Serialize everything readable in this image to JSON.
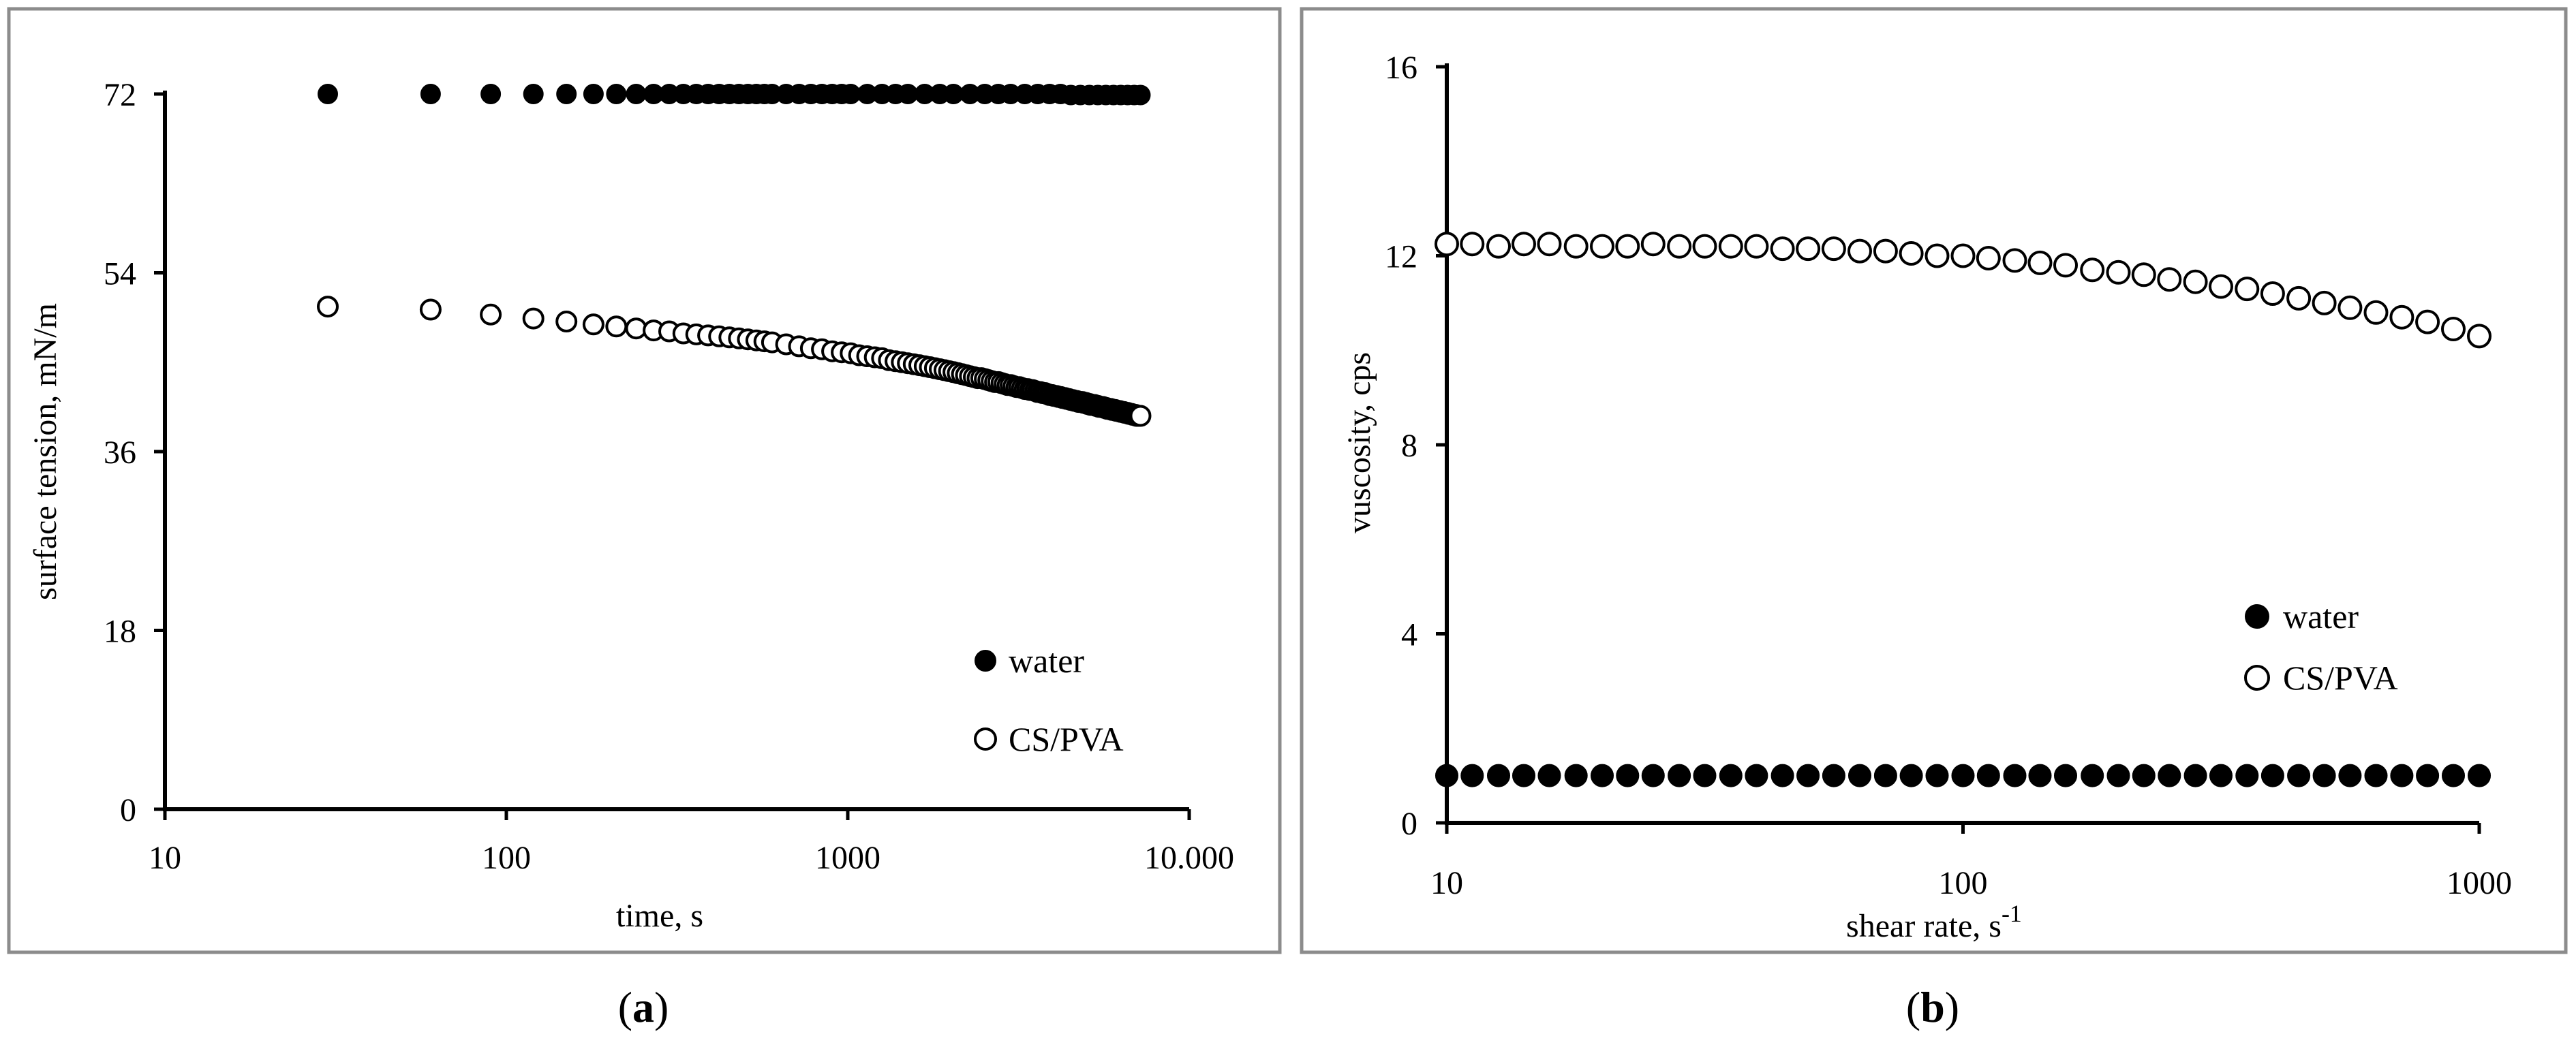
{
  "chart_data": [
    {
      "id": "a",
      "type": "scatter",
      "panel_label": "a",
      "xlabel": "time, s",
      "ylabel": "surface tension, mN/m",
      "xscale": "log",
      "xlim": [
        10,
        10000
      ],
      "ylim": [
        0,
        72
      ],
      "xticks": [
        10,
        100,
        1000,
        10000
      ],
      "xtick_labels": [
        "10",
        "100",
        "1000",
        "10.000"
      ],
      "yticks": [
        0,
        18,
        36,
        54,
        72
      ],
      "ytick_labels": [
        "0",
        "18",
        "36",
        "54",
        "72"
      ],
      "legend_position": "bottom-right",
      "series": [
        {
          "name": "water",
          "marker": "filled-circle",
          "x": [
            30,
            60,
            90,
            120,
            150,
            180,
            210,
            240,
            270,
            300,
            330,
            360,
            390,
            420,
            450,
            480,
            510,
            540,
            570,
            600,
            660,
            720,
            780,
            840,
            900,
            960,
            1020,
            1140,
            1260,
            1380,
            1500,
            1680,
            1860,
            2040,
            2280,
            2520,
            2760,
            3000,
            3300,
            3600,
            3900,
            4200,
            4500,
            4800,
            5100,
            5400,
            5700,
            6000,
            6300,
            6600,
            6900,
            7200
          ],
          "y": [
            72,
            72,
            72,
            72,
            72,
            72,
            72,
            72,
            72,
            72,
            72,
            72,
            72,
            72,
            72,
            72,
            72,
            72,
            72,
            72,
            72,
            72,
            72,
            72,
            72,
            72,
            72,
            72,
            72,
            72,
            72,
            72,
            72,
            72,
            72,
            72,
            72,
            72,
            72,
            72,
            72,
            72,
            71.9,
            71.9,
            71.9,
            71.9,
            71.9,
            71.9,
            71.9,
            71.9,
            71.9,
            71.9
          ]
        },
        {
          "name": "CS/PVA",
          "marker": "hollow-circle",
          "x": [
            30,
            60,
            90,
            120,
            150,
            180,
            210,
            240,
            270,
            300,
            330,
            360,
            390,
            420,
            450,
            480,
            510,
            540,
            570,
            600,
            660,
            720,
            780,
            840,
            900,
            960,
            1020,
            1080,
            1140,
            1200,
            1260,
            1320,
            1380,
            1440,
            1500,
            1560,
            1620,
            1680,
            1740,
            1800,
            1860,
            1920,
            1980,
            2040,
            2100,
            2160,
            2220,
            2280,
            2340,
            2400,
            2460,
            2520,
            2580,
            2640,
            2700,
            2760,
            2820,
            2880,
            2940,
            3000,
            3060,
            3120,
            3180,
            3240,
            3300,
            3360,
            3420,
            3480,
            3540,
            3600,
            3660,
            3720,
            3780,
            3840,
            3900,
            3960,
            4020,
            4080,
            4140,
            4200,
            4260,
            4320,
            4380,
            4440,
            4500,
            4560,
            4620,
            4680,
            4740,
            4800,
            4860,
            4920,
            4980,
            5040,
            5100,
            5160,
            5220,
            5280,
            5340,
            5400,
            5460,
            5520,
            5580,
            5640,
            5700,
            5760,
            5820,
            5880,
            5940,
            6000,
            6060,
            6120,
            6180,
            6240,
            6300,
            6360,
            6420,
            6480,
            6540,
            6600,
            6660,
            6720,
            6780,
            6840,
            6900,
            6960,
            7020,
            7080,
            7140,
            7200
          ],
          "y": [
            50.6,
            50.3,
            49.8,
            49.4,
            49.1,
            48.8,
            48.6,
            48.4,
            48.2,
            48.1,
            47.9,
            47.8,
            47.7,
            47.6,
            47.5,
            47.4,
            47.3,
            47.2,
            47.1,
            47.0,
            46.8,
            46.6,
            46.4,
            46.3,
            46.1,
            46.0,
            45.9,
            45.7,
            45.6,
            45.5,
            45.4,
            45.2,
            45.1,
            45.0,
            44.9,
            44.8,
            44.7,
            44.6,
            44.5,
            44.4,
            44.3,
            44.2,
            44.1,
            44.0,
            43.9,
            43.8,
            43.7,
            43.6,
            43.5,
            43.4,
            43.4,
            43.3,
            43.2,
            43.1,
            43.0,
            43.0,
            42.9,
            42.8,
            42.7,
            42.7,
            42.6,
            42.5,
            42.5,
            42.4,
            42.3,
            42.3,
            42.2,
            42.2,
            42.1,
            42.0,
            42.0,
            41.9,
            41.9,
            41.8,
            41.7,
            41.7,
            41.6,
            41.6,
            41.5,
            41.5,
            41.4,
            41.4,
            41.3,
            41.3,
            41.2,
            41.2,
            41.1,
            41.1,
            41.0,
            41.0,
            41.0,
            40.9,
            40.9,
            40.8,
            40.8,
            40.7,
            40.7,
            40.7,
            40.6,
            40.6,
            40.5,
            40.5,
            40.5,
            40.4,
            40.4,
            40.3,
            40.3,
            40.3,
            40.2,
            40.2,
            40.2,
            40.1,
            40.1,
            40.1,
            40.0,
            40.0,
            40.0,
            39.9,
            39.9,
            39.9,
            39.8,
            39.8,
            39.8,
            39.7,
            39.7,
            39.7,
            39.6,
            39.6,
            39.6,
            39.6
          ]
        }
      ]
    },
    {
      "id": "b",
      "type": "scatter",
      "panel_label": "b",
      "xlabel": "shear rate, s",
      "xlabel_superscript": "-1",
      "ylabel": "vuscosity, cps",
      "xscale": "log",
      "xlim": [
        10,
        1000
      ],
      "ylim": [
        0,
        16
      ],
      "xticks": [
        10,
        100,
        1000
      ],
      "xtick_labels": [
        "10",
        "100",
        "1000"
      ],
      "yticks": [
        0,
        4,
        8,
        12,
        16
      ],
      "ytick_labels": [
        "0",
        "4",
        "8",
        "12",
        "16"
      ],
      "legend_position": "right-center",
      "series": [
        {
          "name": "water",
          "marker": "filled-circle",
          "x": [
            10,
            11.2,
            12.6,
            14.1,
            15.8,
            17.8,
            20.0,
            22.4,
            25.1,
            28.2,
            31.6,
            35.5,
            39.8,
            44.7,
            50.1,
            56.2,
            63.1,
            70.8,
            79.4,
            89.1,
            100,
            112,
            126,
            141,
            158,
            178,
            200,
            224,
            251,
            282,
            316,
            355,
            398,
            447,
            501,
            562,
            631,
            708,
            794,
            891,
            1000
          ],
          "y": [
            1,
            1,
            1,
            1,
            1,
            1,
            1,
            1,
            1,
            1,
            1,
            1,
            1,
            1,
            1,
            1,
            1,
            1,
            1,
            1,
            1,
            1,
            1,
            1,
            1,
            1,
            1,
            1,
            1,
            1,
            1,
            1,
            1,
            1,
            1,
            1,
            1,
            1,
            1,
            1,
            1
          ]
        },
        {
          "name": "CS/PVA",
          "marker": "hollow-circle",
          "x": [
            10,
            11.2,
            12.6,
            14.1,
            15.8,
            17.8,
            20.0,
            22.4,
            25.1,
            28.2,
            31.6,
            35.5,
            39.8,
            44.7,
            50.1,
            56.2,
            63.1,
            70.8,
            79.4,
            89.1,
            100,
            112,
            126,
            141,
            158,
            178,
            200,
            224,
            251,
            282,
            316,
            355,
            398,
            447,
            501,
            562,
            631,
            708,
            794,
            891,
            1000
          ],
          "y": [
            12.25,
            12.25,
            12.2,
            12.25,
            12.25,
            12.2,
            12.2,
            12.2,
            12.25,
            12.2,
            12.2,
            12.2,
            12.2,
            12.15,
            12.15,
            12.15,
            12.1,
            12.1,
            12.05,
            12.0,
            12.0,
            11.95,
            11.9,
            11.85,
            11.8,
            11.7,
            11.65,
            11.6,
            11.5,
            11.45,
            11.35,
            11.3,
            11.2,
            11.1,
            11.0,
            10.9,
            10.8,
            10.7,
            10.6,
            10.45,
            10.3
          ]
        }
      ]
    }
  ]
}
